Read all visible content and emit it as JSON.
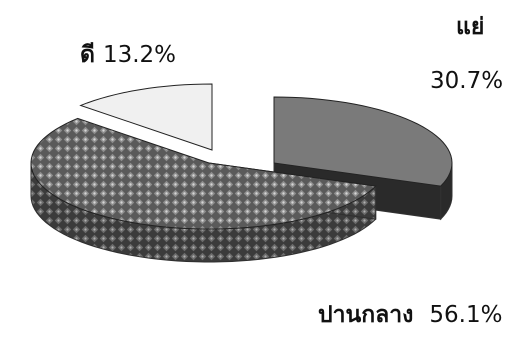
{
  "chart_data": {
    "type": "pie",
    "style": "3d-exploded",
    "categories": [
      "แย่",
      "ปานกลาง",
      "ดี"
    ],
    "values": [
      30.7,
      56.1,
      13.2
    ],
    "value_labels": [
      "30.7%",
      "56.1%",
      "13.2%"
    ],
    "title": "",
    "colors": [
      "#7a7a7a",
      "#4e4e4e",
      "#efefef"
    ],
    "legend": "none"
  }
}
